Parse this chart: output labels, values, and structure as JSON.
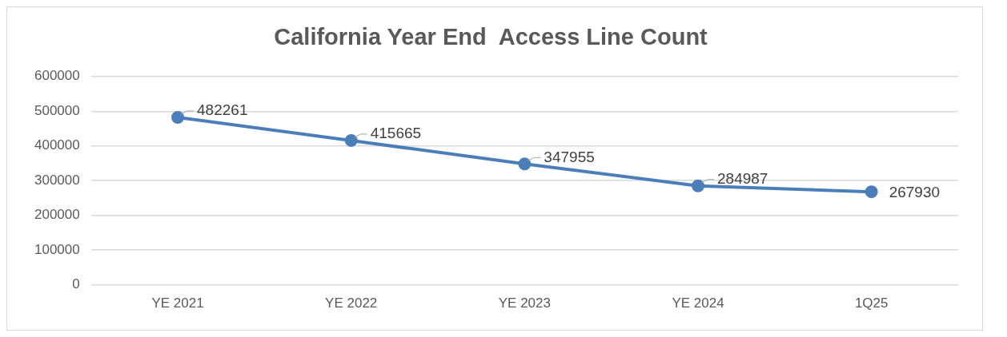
{
  "chart_data": {
    "type": "line",
    "title": "California Year End  Access Line Count",
    "categories": [
      "YE 2021",
      "YE 2022",
      "YE 2023",
      "YE 2024",
      "1Q25"
    ],
    "series": [
      {
        "color": "#4a7ebb",
        "values": [
          482261,
          415665,
          347955,
          284987,
          267930
        ]
      }
    ],
    "ylim": [
      0,
      600000
    ],
    "yticks": [
      0,
      100000,
      200000,
      300000,
      400000,
      500000,
      600000
    ],
    "grid": "y",
    "legend": false,
    "marker": "circle",
    "line_style": "solid",
    "data_labels": true
  }
}
